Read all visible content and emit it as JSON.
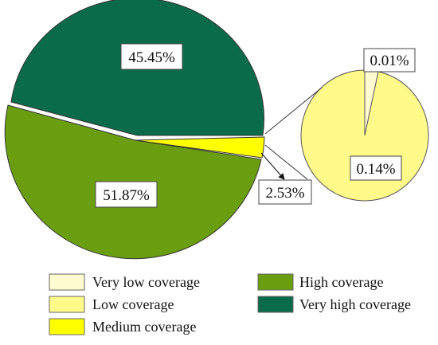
{
  "chart_data": {
    "type": "pie",
    "title": "",
    "main_pie": {
      "slices": [
        {
          "name": "Very high coverage",
          "value": 45.45,
          "label": "45.45%",
          "color": "#0a6b4a"
        },
        {
          "name": "High coverage",
          "value": 51.87,
          "label": "51.87%",
          "color": "#6b9e0f"
        },
        {
          "name": "Medium coverage",
          "value": 2.53,
          "label": "2.53%",
          "color": "#ffff00"
        }
      ]
    },
    "detail_pie": {
      "slices": [
        {
          "name": "Very low coverage",
          "value": 0.01,
          "label": "0.01%",
          "color": "#fdfbcf"
        },
        {
          "name": "Low coverage",
          "value": 0.14,
          "label": "0.14%",
          "color": "#fffa8a"
        }
      ]
    },
    "legend": [
      {
        "label": "Very low coverage",
        "color": "#fdfbcf"
      },
      {
        "label": "High coverage",
        "color": "#6b9e0f"
      },
      {
        "label": "Low coverage",
        "color": "#fffa8a"
      },
      {
        "label": "Very high coverage",
        "color": "#0a6b4a"
      },
      {
        "label": "Medium coverage",
        "color": "#ffff00"
      }
    ],
    "legend_placement": "bottom"
  }
}
